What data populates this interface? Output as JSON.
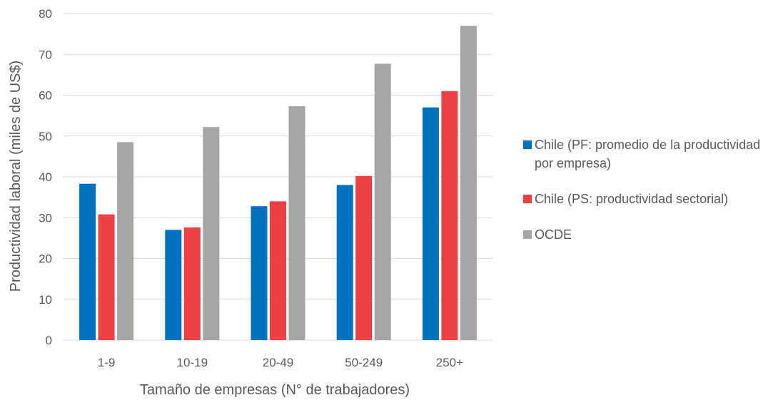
{
  "chart_data": {
    "type": "bar",
    "categories": [
      "1-9",
      "10-19",
      "20-49",
      "50-249",
      "250+"
    ],
    "series": [
      {
        "name": "Chile (PF: promedio de la productividad por empresa)",
        "color": "#0070C0",
        "values": [
          38.3,
          27.0,
          32.8,
          38.0,
          57.0
        ]
      },
      {
        "name": "Chile (PS: productividad sectorial)",
        "color": "#EE4042",
        "values": [
          30.8,
          27.6,
          34.0,
          40.2,
          61.0
        ]
      },
      {
        "name": "OCDE",
        "color": "#A5A5A5",
        "values": [
          48.5,
          52.2,
          57.3,
          67.7,
          77.0
        ]
      }
    ],
    "xlabel": "Tamaño de empresas (N° de trabajadores)",
    "ylabel": "Productividad laboral (miles de US$)",
    "ylim": [
      0,
      80
    ],
    "yticks": [
      0,
      10,
      20,
      30,
      40,
      50,
      60,
      70,
      80
    ],
    "grid": true,
    "legend_position": "right"
  }
}
